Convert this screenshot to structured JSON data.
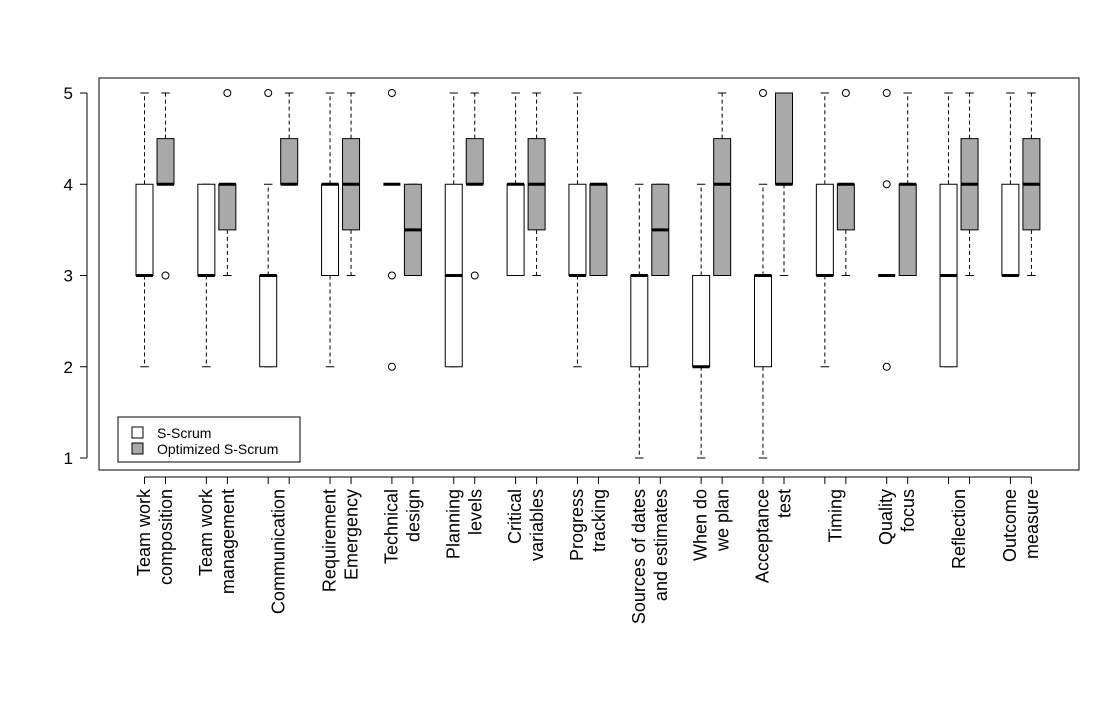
{
  "chart_data": {
    "type": "boxplot",
    "title": "",
    "xlabel": "",
    "ylabel": "",
    "ylim": [
      1,
      5
    ],
    "yticks": [
      1,
      2,
      3,
      4,
      5
    ],
    "grid": false,
    "legend_position": "bottom-left",
    "colors": {
      "s_scrum": "#ffffff",
      "optimized": "#a9a9a9",
      "stroke": "#000000"
    },
    "series": [
      {
        "key": "s_scrum",
        "name": "S-Scrum",
        "color": "#ffffff"
      },
      {
        "key": "optimized",
        "name": "Optimized S-Scrum",
        "color": "#a9a9a9"
      }
    ],
    "categories": [
      {
        "lines": [
          "Team work",
          "composition"
        ],
        "s_scrum": {
          "min": 2,
          "q1": 3,
          "median": 3,
          "q3": 4,
          "max": 5,
          "outliers": []
        },
        "optimized": {
          "min": 4,
          "q1": 4,
          "median": 4,
          "q3": 4.5,
          "max": 5,
          "outliers": [
            3
          ]
        }
      },
      {
        "lines": [
          "Team work",
          "management"
        ],
        "s_scrum": {
          "min": 2,
          "q1": 3,
          "median": 3,
          "q3": 4,
          "max": 4,
          "outliers": []
        },
        "optimized": {
          "min": 3,
          "q1": 3.5,
          "median": 4,
          "q3": 4,
          "max": 4,
          "outliers": [
            5
          ]
        }
      },
      {
        "lines": [
          "Communication"
        ],
        "s_scrum": {
          "min": 2,
          "q1": 2,
          "median": 3,
          "q3": 3,
          "max": 4,
          "outliers": [
            5
          ]
        },
        "optimized": {
          "min": 4,
          "q1": 4,
          "median": 4,
          "q3": 4.5,
          "max": 5,
          "outliers": []
        }
      },
      {
        "lines": [
          "Requirement",
          "Emergency"
        ],
        "s_scrum": {
          "min": 2,
          "q1": 3,
          "median": 4,
          "q3": 4,
          "max": 5,
          "outliers": []
        },
        "optimized": {
          "min": 3,
          "q1": 3.5,
          "median": 4,
          "q3": 4.5,
          "max": 5,
          "outliers": []
        }
      },
      {
        "lines": [
          "Technical",
          "design"
        ],
        "s_scrum": {
          "min": 4,
          "q1": 4,
          "median": 4,
          "q3": 4,
          "max": 4,
          "outliers": [
            5,
            3,
            2
          ]
        },
        "optimized": {
          "min": 3,
          "q1": 3,
          "median": 3.5,
          "q3": 4,
          "max": 4,
          "outliers": []
        }
      },
      {
        "lines": [
          "Planning",
          "levels"
        ],
        "s_scrum": {
          "min": 2,
          "q1": 2,
          "median": 3,
          "q3": 4,
          "max": 5,
          "outliers": []
        },
        "optimized": {
          "min": 4,
          "q1": 4,
          "median": 4,
          "q3": 4.5,
          "max": 5,
          "outliers": [
            3
          ]
        }
      },
      {
        "lines": [
          "Critical",
          "variables"
        ],
        "s_scrum": {
          "min": 3,
          "q1": 3,
          "median": 4,
          "q3": 4,
          "max": 5,
          "outliers": []
        },
        "optimized": {
          "min": 3,
          "q1": 3.5,
          "median": 4,
          "q3": 4.5,
          "max": 5,
          "outliers": []
        }
      },
      {
        "lines": [
          "Progress",
          "tracking"
        ],
        "s_scrum": {
          "min": 2,
          "q1": 3,
          "median": 3,
          "q3": 4,
          "max": 5,
          "outliers": []
        },
        "optimized": {
          "min": 3,
          "q1": 3,
          "median": 4,
          "q3": 4,
          "max": 4,
          "outliers": []
        }
      },
      {
        "lines": [
          "Sources of dates",
          "and estimates"
        ],
        "s_scrum": {
          "min": 1,
          "q1": 2,
          "median": 3,
          "q3": 3,
          "max": 4,
          "outliers": []
        },
        "optimized": {
          "min": 3,
          "q1": 3,
          "median": 3.5,
          "q3": 4,
          "max": 4,
          "outliers": []
        }
      },
      {
        "lines": [
          "When do",
          "we plan"
        ],
        "s_scrum": {
          "min": 1,
          "q1": 2,
          "median": 2,
          "q3": 3,
          "max": 4,
          "outliers": []
        },
        "optimized": {
          "min": 3,
          "q1": 3,
          "median": 4,
          "q3": 4.5,
          "max": 5,
          "outliers": []
        }
      },
      {
        "lines": [
          "Acceptance",
          "test"
        ],
        "s_scrum": {
          "min": 1,
          "q1": 2,
          "median": 3,
          "q3": 3,
          "max": 4,
          "outliers": [
            5
          ]
        },
        "optimized": {
          "min": 3,
          "q1": 4,
          "median": 4,
          "q3": 5,
          "max": 5,
          "outliers": []
        }
      },
      {
        "lines": [
          "Timing"
        ],
        "s_scrum": {
          "min": 2,
          "q1": 3,
          "median": 3,
          "q3": 4,
          "max": 5,
          "outliers": []
        },
        "optimized": {
          "min": 3,
          "q1": 3.5,
          "median": 4,
          "q3": 4,
          "max": 4,
          "outliers": [
            5
          ]
        }
      },
      {
        "lines": [
          "Quality",
          "focus"
        ],
        "s_scrum": {
          "min": 3,
          "q1": 3,
          "median": 3,
          "q3": 3,
          "max": 3,
          "outliers": [
            5,
            4,
            2
          ]
        },
        "optimized": {
          "min": 3,
          "q1": 3,
          "median": 4,
          "q3": 4,
          "max": 5,
          "outliers": []
        }
      },
      {
        "lines": [
          "Reflection"
        ],
        "s_scrum": {
          "min": 2,
          "q1": 2,
          "median": 3,
          "q3": 4,
          "max": 5,
          "outliers": []
        },
        "optimized": {
          "min": 3,
          "q1": 3.5,
          "median": 4,
          "q3": 4.5,
          "max": 5,
          "outliers": []
        }
      },
      {
        "lines": [
          "Outcome",
          "measure"
        ],
        "s_scrum": {
          "min": 3,
          "q1": 3,
          "median": 3,
          "q3": 4,
          "max": 5,
          "outliers": []
        },
        "optimized": {
          "min": 3,
          "q1": 3.5,
          "median": 4,
          "q3": 4.5,
          "max": 5,
          "outliers": []
        }
      }
    ]
  }
}
